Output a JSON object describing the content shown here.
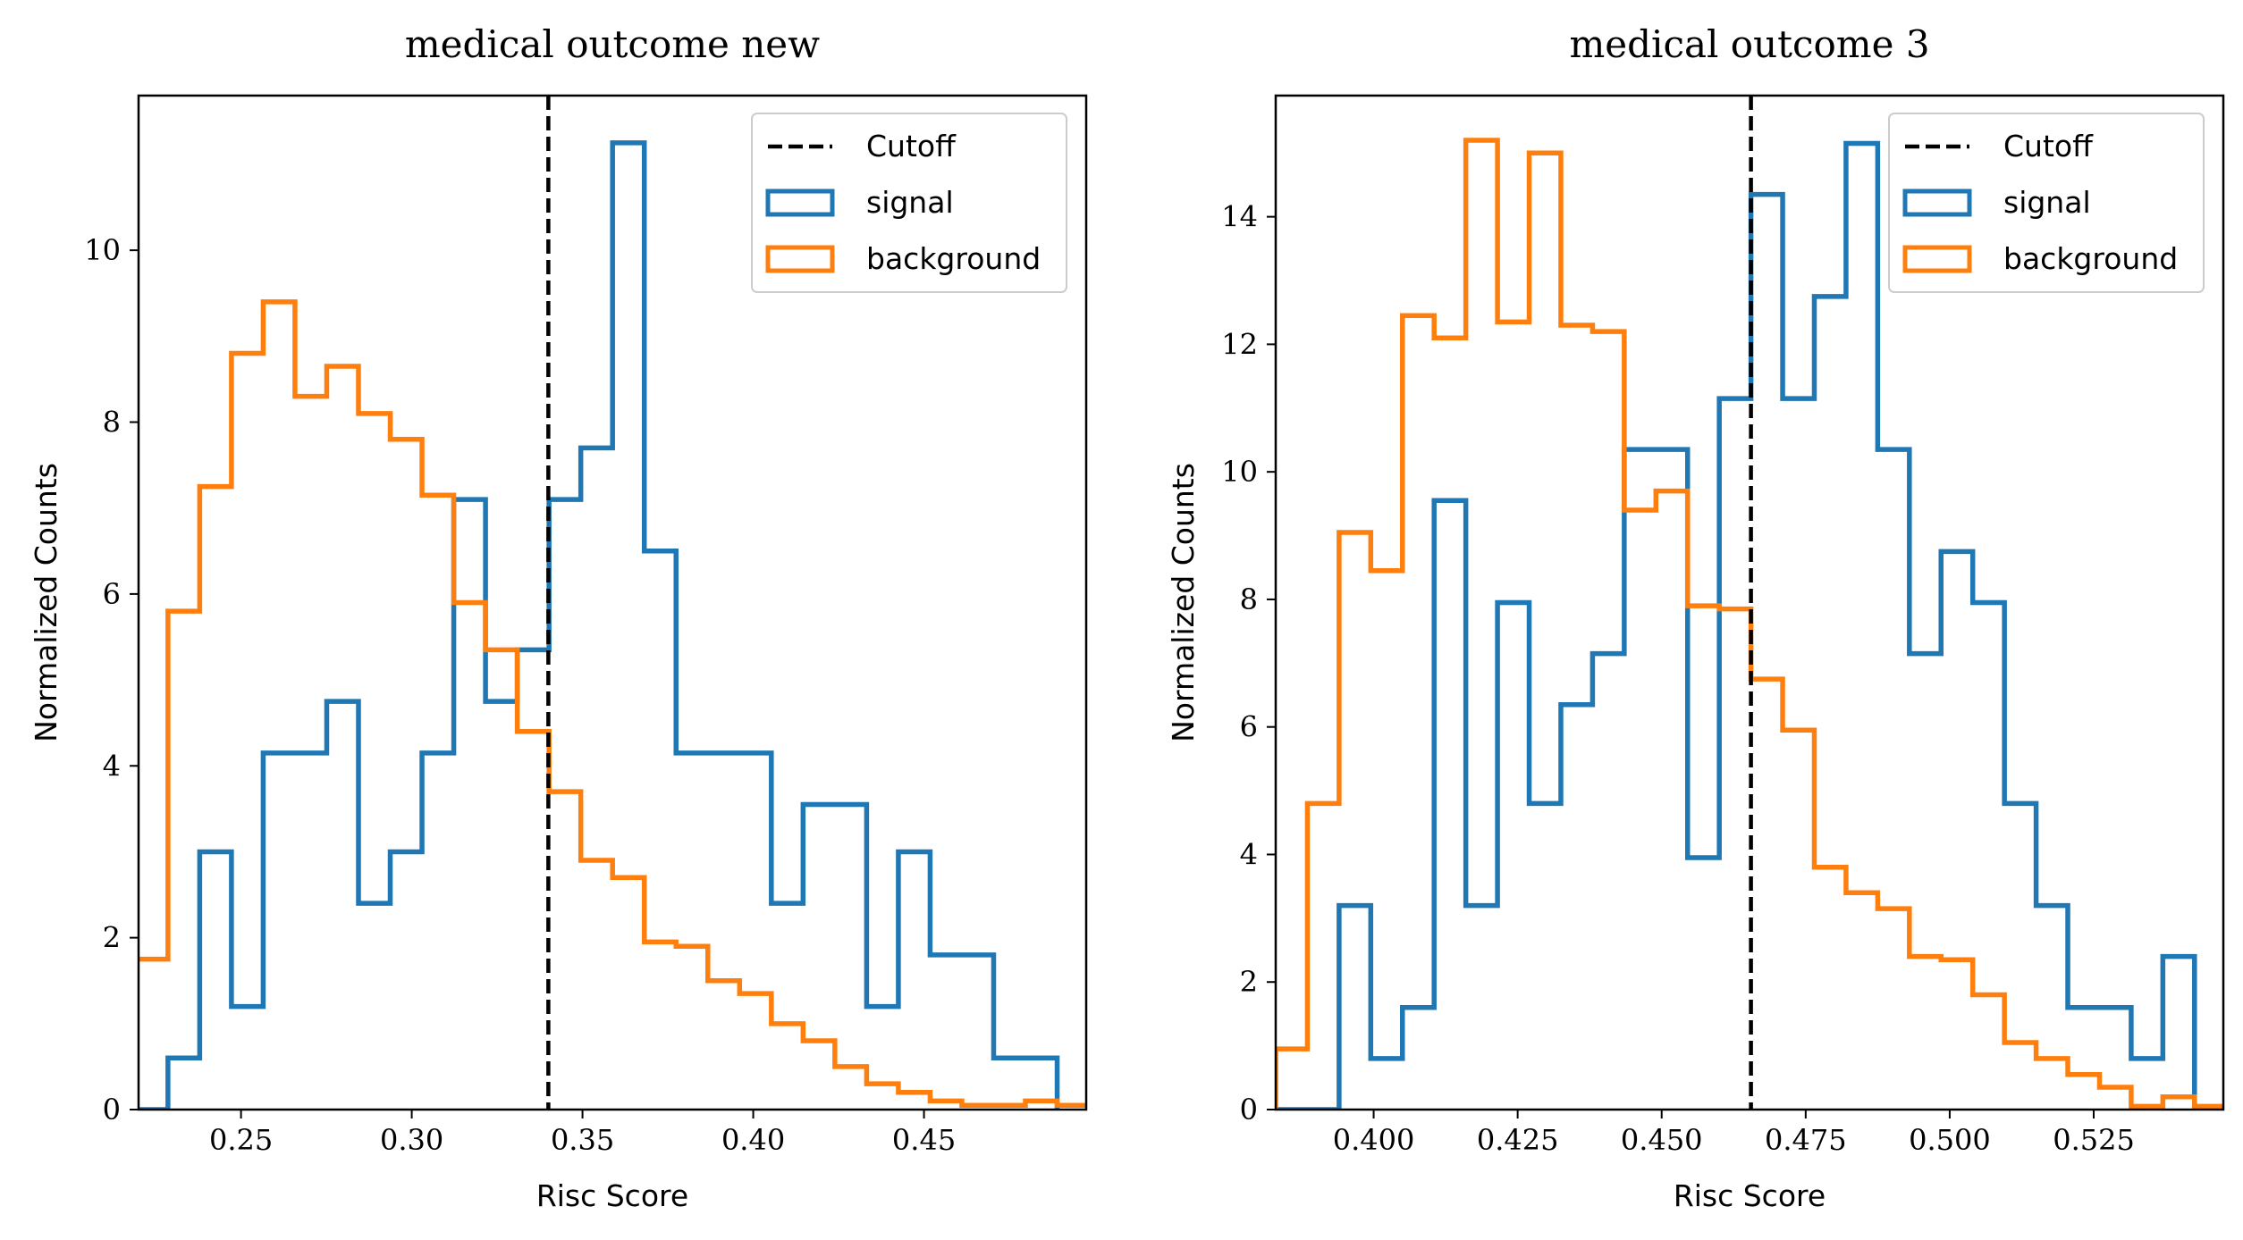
{
  "colors": {
    "signal": "#1f77b4",
    "background": "#ff7f0e",
    "cutoff": "#000000"
  },
  "chart_data": [
    {
      "type": "histogram",
      "title": "medical outcome new",
      "xlabel": "Risc Score",
      "ylabel": "Normalized Counts",
      "xlim": [
        0.22,
        0.4975
      ],
      "ylim": [
        0,
        11.8
      ],
      "xticks": [
        0.25,
        0.3,
        0.35,
        0.4,
        0.45
      ],
      "xtick_labels": [
        "0.25",
        "0.30",
        "0.35",
        "0.40",
        "0.45"
      ],
      "yticks": [
        0,
        2,
        4,
        6,
        8,
        10
      ],
      "ytick_labels": [
        "0",
        "2",
        "4",
        "6",
        "8",
        "10"
      ],
      "cutoff": 0.34,
      "legend_position": "upper right",
      "legend": [
        "Cutoff",
        "signal",
        "background"
      ],
      "series": [
        {
          "name": "signal",
          "bin_edges": [
            0.2193,
            0.2286,
            0.2379,
            0.2472,
            0.2565,
            0.2658,
            0.2751,
            0.2844,
            0.2937,
            0.303,
            0.3123,
            0.3216,
            0.3309,
            0.3402,
            0.3495,
            0.3588,
            0.3681,
            0.3774,
            0.3867,
            0.396,
            0.4053,
            0.4146,
            0.4239,
            0.4332,
            0.4425,
            0.4518,
            0.4611,
            0.4704,
            0.4797,
            0.489
          ],
          "values": [
            0,
            0.6,
            3.0,
            1.2,
            4.15,
            4.15,
            4.75,
            2.4,
            3.0,
            4.15,
            7.1,
            4.75,
            5.35,
            7.1,
            7.7,
            11.25,
            6.5,
            4.15,
            4.15,
            4.15,
            2.4,
            3.55,
            3.55,
            1.2,
            3.0,
            1.8,
            1.8,
            0.6,
            0.6
          ]
        },
        {
          "name": "background",
          "bin_edges": [
            0.2193,
            0.2286,
            0.2379,
            0.2472,
            0.2565,
            0.2658,
            0.2751,
            0.2844,
            0.2937,
            0.303,
            0.3123,
            0.3216,
            0.3309,
            0.3402,
            0.3495,
            0.3588,
            0.3681,
            0.3774,
            0.3867,
            0.396,
            0.4053,
            0.4146,
            0.4239,
            0.4332,
            0.4425,
            0.4518,
            0.4611,
            0.4704,
            0.4797,
            0.489,
            0.4983
          ],
          "values": [
            1.75,
            5.8,
            7.25,
            8.8,
            9.4,
            8.3,
            8.65,
            8.1,
            7.8,
            7.15,
            5.9,
            5.35,
            4.4,
            3.7,
            2.9,
            2.7,
            1.95,
            1.9,
            1.5,
            1.35,
            1.0,
            0.8,
            0.5,
            0.3,
            0.2,
            0.1,
            0.05,
            0.05,
            0.1,
            0.05
          ]
        }
      ]
    },
    {
      "type": "histogram",
      "title": "medical outcome 3",
      "xlabel": "Risc Score",
      "ylabel": "Normalized Counts",
      "xlim": [
        0.383,
        0.5475
      ],
      "ylim": [
        0,
        15.9
      ],
      "xticks": [
        0.4,
        0.425,
        0.45,
        0.475,
        0.5,
        0.525
      ],
      "xtick_labels": [
        "0.400",
        "0.425",
        "0.450",
        "0.475",
        "0.500",
        "0.525"
      ],
      "yticks": [
        0,
        2,
        4,
        6,
        8,
        10,
        12,
        14
      ],
      "ytick_labels": [
        "0",
        "2",
        "4",
        "6",
        "8",
        "10",
        "12",
        "14"
      ],
      "cutoff": 0.4655,
      "legend_position": "upper right",
      "legend": [
        "Cutoff",
        "signal",
        "background"
      ],
      "series": [
        {
          "name": "signal",
          "bin_edges": [
            0.383,
            0.3885,
            0.394,
            0.3995,
            0.405,
            0.4105,
            0.416,
            0.4215,
            0.427,
            0.4325,
            0.438,
            0.4435,
            0.449,
            0.4545,
            0.46,
            0.4655,
            0.471,
            0.4765,
            0.482,
            0.4875,
            0.493,
            0.4985,
            0.504,
            0.5095,
            0.515,
            0.5205,
            0.526,
            0.5315,
            0.537,
            0.5425
          ],
          "values": [
            0,
            0,
            3.2,
            0.8,
            1.6,
            9.55,
            3.2,
            7.95,
            4.8,
            6.35,
            7.15,
            10.35,
            10.35,
            3.95,
            11.15,
            14.35,
            11.15,
            12.75,
            15.15,
            10.35,
            7.15,
            8.75,
            7.95,
            4.8,
            3.2,
            1.6,
            1.6,
            0.8,
            2.4
          ]
        },
        {
          "name": "background",
          "bin_edges": [
            0.383,
            0.3885,
            0.394,
            0.3995,
            0.405,
            0.4105,
            0.416,
            0.4215,
            0.427,
            0.4325,
            0.438,
            0.4435,
            0.449,
            0.4545,
            0.46,
            0.4655,
            0.471,
            0.4765,
            0.482,
            0.4875,
            0.493,
            0.4985,
            0.504,
            0.5095,
            0.515,
            0.5205,
            0.526,
            0.5315,
            0.537,
            0.5425,
            0.548
          ],
          "values": [
            0.95,
            4.8,
            9.05,
            8.45,
            12.45,
            12.1,
            15.2,
            12.35,
            15.0,
            12.3,
            12.2,
            9.4,
            9.7,
            7.9,
            7.85,
            6.75,
            5.95,
            3.8,
            3.4,
            3.15,
            2.4,
            2.35,
            1.8,
            1.05,
            0.8,
            0.55,
            0.35,
            0.05,
            0.2,
            0.05
          ]
        }
      ]
    }
  ]
}
